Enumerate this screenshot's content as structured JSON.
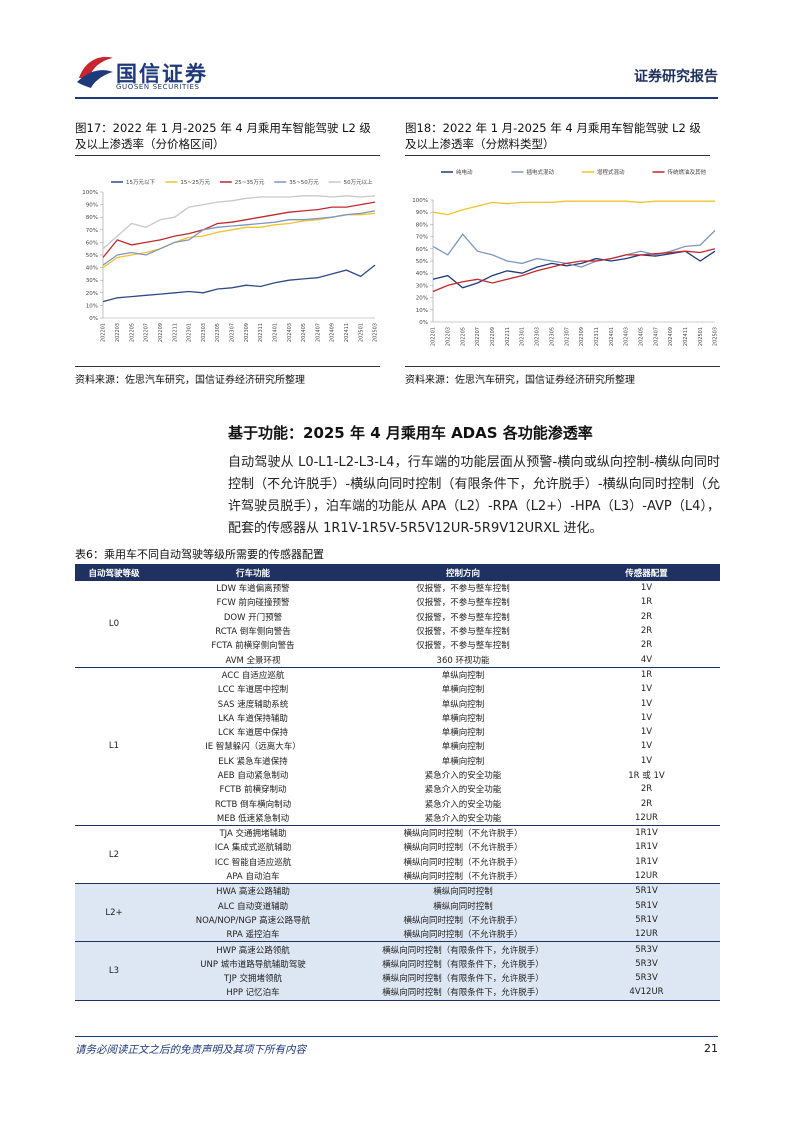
{
  "header": {
    "brand": "国信证券",
    "brand_en": "GUOSEN SECURITIES",
    "report_type": "证券研究报告"
  },
  "figures": [
    {
      "caption": "图17：2022 年 1 月-2025 年 4 月乘用车智能驾驶 L2 级及以上渗透率（分价格区间）",
      "source": "资料来源：佐思汽车研究，国信证券经济研究所整理",
      "chart": {
        "type": "line",
        "categories": [
          "202201",
          "202203",
          "202205",
          "202207",
          "202209",
          "202211",
          "202301",
          "202303",
          "202305",
          "202307",
          "202309",
          "202311",
          "202401",
          "202403",
          "202405",
          "202407",
          "202409",
          "202411",
          "202501",
          "202503"
        ],
        "series": [
          {
            "name": "15万元以下",
            "color": "#2e4a8a",
            "values": [
              13,
              16,
              17,
              18,
              19,
              20,
              21,
              20,
              23,
              24,
              26,
              25,
              28,
              30,
              31,
              32,
              35,
              38,
              33,
              42
            ]
          },
          {
            "name": "15~25万元",
            "color": "#f2c12e",
            "values": [
              40,
              48,
              50,
              52,
              55,
              60,
              64,
              65,
              68,
              70,
              72,
              72,
              74,
              75,
              77,
              78,
              80,
              82,
              82,
              83
            ]
          },
          {
            "name": "25~35万元",
            "color": "#c0282d",
            "values": [
              48,
              62,
              58,
              60,
              62,
              65,
              67,
              70,
              75,
              76,
              78,
              80,
              82,
              84,
              85,
              86,
              88,
              88,
              90,
              92
            ]
          },
          {
            "name": "35~50万元",
            "color": "#7f96c0",
            "values": [
              42,
              50,
              52,
              50,
              55,
              60,
              62,
              70,
              72,
              73,
              74,
              75,
              76,
              78,
              78,
              79,
              80,
              82,
              83,
              85
            ]
          },
          {
            "name": "50万元以上",
            "color": "#c8c8c8",
            "values": [
              55,
              65,
              75,
              72,
              78,
              80,
              88,
              90,
              92,
              93,
              95,
              96,
              96,
              96,
              97,
              97,
              96,
              97,
              96,
              97
            ]
          }
        ],
        "ylim": [
          0,
          100
        ],
        "yticks": [
          {
            "value": 0,
            "label": "0%"
          },
          {
            "value": 10,
            "label": "10%"
          },
          {
            "value": 20,
            "label": "20%"
          },
          {
            "value": 30,
            "label": "30%"
          },
          {
            "value": 40,
            "label": "40%"
          },
          {
            "value": 50,
            "label": "50%"
          },
          {
            "value": 60,
            "label": "60%"
          },
          {
            "value": 70,
            "label": "70%"
          },
          {
            "value": 80,
            "label": "80%"
          },
          {
            "value": 90,
            "label": "90%"
          },
          {
            "value": 100,
            "label": "100%"
          }
        ]
      }
    },
    {
      "caption": "图18：2022 年 1 月-2025 年 4 月乘用车智能驾驶 L2 级及以上渗透率（分燃料类型）",
      "source": "资料来源：佐思汽车研究，国信证券经济研究所整理",
      "chart": {
        "type": "line",
        "categories": [
          "202201",
          "202203",
          "202205",
          "202207",
          "202209",
          "202211",
          "202301",
          "202303",
          "202305",
          "202307",
          "202309",
          "202311",
          "202401",
          "202403",
          "202405",
          "202407",
          "202409",
          "202411",
          "202501",
          "202503"
        ],
        "series": [
          {
            "name": "纯电动",
            "color": "#1f3a7a",
            "values": [
              35,
              38,
              28,
              32,
              38,
              42,
              40,
              45,
              48,
              46,
              48,
              52,
              50,
              52,
              55,
              54,
              56,
              58,
              50,
              58
            ]
          },
          {
            "name": "插电式混动",
            "color": "#7f96c0",
            "values": [
              62,
              55,
              72,
              58,
              55,
              50,
              48,
              52,
              50,
              48,
              45,
              50,
              52,
              55,
              58,
              55,
              58,
              62,
              63,
              75
            ]
          },
          {
            "name": "增程式混动",
            "color": "#f2c12e",
            "values": [
              90,
              88,
              92,
              95,
              98,
              97,
              98,
              98,
              98,
              99,
              99,
              99,
              99,
              99,
              98,
              99,
              99,
              99,
              99,
              99
            ]
          },
          {
            "name": "传统燃油及其他",
            "color": "#c0282d",
            "values": [
              25,
              30,
              33,
              35,
              32,
              35,
              38,
              42,
              45,
              48,
              50,
              50,
              52,
              55,
              55,
              56,
              57,
              58,
              57,
              60
            ]
          }
        ],
        "ylim": [
          0,
          100
        ],
        "yticks": [
          {
            "value": 0,
            "label": "0%"
          },
          {
            "value": 10,
            "label": "10%"
          },
          {
            "value": 20,
            "label": "20%"
          },
          {
            "value": 30,
            "label": "30%"
          },
          {
            "value": 40,
            "label": "40%"
          },
          {
            "value": 50,
            "label": "50%"
          },
          {
            "value": 60,
            "label": "60%"
          },
          {
            "value": 70,
            "label": "70%"
          },
          {
            "value": 80,
            "label": "80%"
          },
          {
            "value": 90,
            "label": "90%"
          },
          {
            "value": 100,
            "label": "100%"
          }
        ]
      }
    }
  ],
  "section_title": "基于功能：2025 年 4 月乘用车 ADAS 各功能渗透率",
  "paragraph": "自动驾驶从 L0-L1-L2-L3-L4，行车端的功能层面从预警-横向或纵向控制-横纵向同时控制（不允许脱手）-横纵向同时控制（有限条件下，允许脱手）-横纵向同时控制（允许驾驶员脱手），泊车端的功能从 APA（L2）-RPA（L2+）-HPA（L3）-AVP（L4），配套的传感器从 1R1V-1R5V-5R5V12UR-5R9V12URXL 进化。",
  "table": {
    "caption": "表6：乘用车不同自动驾驶等级所需要的传感器配置",
    "columns": [
      "自动驾驶等级",
      "行车功能",
      "控制方向",
      "传感器配置"
    ],
    "groups": [
      {
        "level": "L0",
        "rows": [
          [
            "LDW 车道偏离预警",
            "仅报警，不参与整车控制",
            "1V"
          ],
          [
            "FCW 前向碰撞预警",
            "仅报警，不参与整车控制",
            "1R"
          ],
          [
            "DOW 开门预警",
            "仅报警，不参与整车控制",
            "2R"
          ],
          [
            "RCTA 倒车侧向警告",
            "仅报警，不参与整车控制",
            "2R"
          ],
          [
            "FCTA 前横穿侧向警告",
            "仅报警，不参与整车控制",
            "2R"
          ],
          [
            "AVM 全景环视",
            "360 环视功能",
            "4V"
          ]
        ]
      },
      {
        "level": "L1",
        "rows": [
          [
            "ACC 自适应巡航",
            "单纵向控制",
            "1R"
          ],
          [
            "LCC 车道居中控制",
            "单横向控制",
            "1V"
          ],
          [
            "SAS 速度辅助系统",
            "单纵向控制",
            "1V"
          ],
          [
            "LKA 车道保持辅助",
            "单横向控制",
            "1V"
          ],
          [
            "LCK 车道居中保持",
            "单横向控制",
            "1V"
          ],
          [
            "IE 智慧躲闪（远离大车）",
            "单横向控制",
            "1V"
          ],
          [
            "ELK 紧急车道保持",
            "单横向控制",
            "1V"
          ],
          [
            "AEB 自动紧急制动",
            "紧急介入的安全功能",
            "1R 或 1V"
          ],
          [
            "FCTB 前横穿制动",
            "紧急介入的安全功能",
            "2R"
          ],
          [
            "RCTB 倒车横向制动",
            "紧急介入的安全功能",
            "2R"
          ],
          [
            "MEB 低速紧急制动",
            "紧急介入的安全功能",
            "12UR"
          ]
        ]
      },
      {
        "level": "L2",
        "rows": [
          [
            "TJA 交通拥堵辅助",
            "横纵向同时控制（不允许脱手）",
            "1R1V"
          ],
          [
            "ICA 集成式巡航辅助",
            "横纵向同时控制（不允许脱手）",
            "1R1V"
          ],
          [
            "ICC 智能自适应巡航",
            "横纵向同时控制（不允许脱手）",
            "1R1V"
          ],
          [
            "APA 自动泊车",
            "横纵向同时控制（不允许脱手）",
            "12UR"
          ]
        ]
      },
      {
        "level": "L2+",
        "rows": [
          [
            "HWA 高速公路辅助",
            "横纵向同时控制",
            "5R1V"
          ],
          [
            "ALC 自动变道辅助",
            "横纵向同时控制",
            "5R1V"
          ],
          [
            "NOA/NOP/NGP 高速公路导航",
            "横纵向同时控制（不允许脱手）",
            "5R1V"
          ],
          [
            "RPA 遥控泊车",
            "横纵向同时控制（不允许脱手）",
            "12UR"
          ]
        ]
      },
      {
        "level": "L3",
        "rows": [
          [
            "HWP 高速公路领航",
            "横纵向同时控制（有限条件下，允许脱手）",
            "5R3V"
          ],
          [
            "UNP 城市道路导航辅助驾驶",
            "横纵向同时控制（有限条件下，允许脱手）",
            "5R3V"
          ],
          [
            "TJP 交拥堵领航",
            "横纵向同时控制（有限条件下，允许脱手）",
            "5R3V"
          ],
          [
            "HPP 记忆泊车",
            "横纵向同时控制（有限条件下，允许脱手）",
            "4V12UR"
          ]
        ]
      }
    ]
  },
  "footer": {
    "disclaimer": "请务必阅读正文之后的免责声明及其项下所有内容",
    "page": "21"
  }
}
